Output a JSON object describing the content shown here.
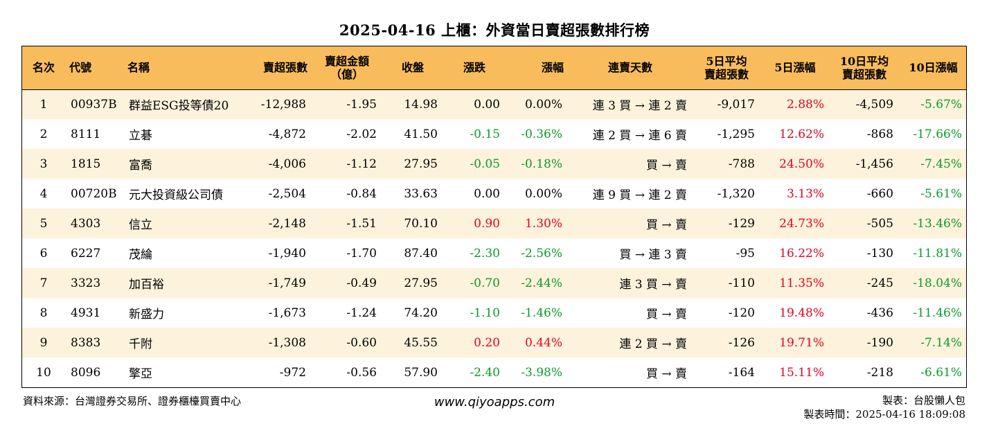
{
  "title": "2025-04-16 上櫃：外資當日賣超張數排行榜",
  "columns": [
    [
      "名次"
    ],
    [
      "代號"
    ],
    [
      "名稱"
    ],
    [
      "賣超張數"
    ],
    [
      "賣超金額",
      "（億）"
    ],
    [
      "收盤"
    ],
    [
      "漲跌"
    ],
    [
      "漲幅"
    ],
    [
      "連賣天數"
    ],
    [
      "5日平均",
      "賣超張數"
    ],
    [
      "5日漲幅"
    ],
    [
      "10日平均",
      "賣超張數"
    ],
    [
      "10日漲幅"
    ]
  ],
  "rows": [
    {
      "rank": "1",
      "code": "00937B",
      "name": "群益ESG投等債20",
      "sell": "-12,988",
      "amount": "-1.95",
      "close": "14.98",
      "change": "0.00",
      "pct": "0.00%",
      "dir": "flat",
      "streak": "連 3 買 → 連 2 賣",
      "avg5": "-9,017",
      "pct5": "2.88%",
      "pct5_dir": "up",
      "avg10": "-4,509",
      "pct10": "-5.67%",
      "pct10_dir": "down"
    },
    {
      "rank": "2",
      "code": "8111",
      "name": "立碁",
      "sell": "-4,872",
      "amount": "-2.02",
      "close": "41.50",
      "change": "-0.15",
      "pct": "-0.36%",
      "dir": "down",
      "streak": "連 2 買 → 連 6 賣",
      "avg5": "-1,295",
      "pct5": "12.62%",
      "pct5_dir": "up",
      "avg10": "-868",
      "pct10": "-17.66%",
      "pct10_dir": "down"
    },
    {
      "rank": "3",
      "code": "1815",
      "name": "富喬",
      "sell": "-4,006",
      "amount": "-1.12",
      "close": "27.95",
      "change": "-0.05",
      "pct": "-0.18%",
      "dir": "down",
      "streak": "買 → 賣",
      "avg5": "-788",
      "pct5": "24.50%",
      "pct5_dir": "up",
      "avg10": "-1,456",
      "pct10": "-7.45%",
      "pct10_dir": "down"
    },
    {
      "rank": "4",
      "code": "00720B",
      "name": "元大投資級公司債",
      "sell": "-2,504",
      "amount": "-0.84",
      "close": "33.63",
      "change": "0.00",
      "pct": "0.00%",
      "dir": "flat",
      "streak": "連 9 買 → 連 2 賣",
      "avg5": "-1,320",
      "pct5": "3.13%",
      "pct5_dir": "up",
      "avg10": "-660",
      "pct10": "-5.61%",
      "pct10_dir": "down"
    },
    {
      "rank": "5",
      "code": "4303",
      "name": "信立",
      "sell": "-2,148",
      "amount": "-1.51",
      "close": "70.10",
      "change": "0.90",
      "pct": "1.30%",
      "dir": "up",
      "streak": "買 → 賣",
      "avg5": "-129",
      "pct5": "24.73%",
      "pct5_dir": "up",
      "avg10": "-505",
      "pct10": "-13.46%",
      "pct10_dir": "down"
    },
    {
      "rank": "6",
      "code": "6227",
      "name": "茂綸",
      "sell": "-1,940",
      "amount": "-1.70",
      "close": "87.40",
      "change": "-2.30",
      "pct": "-2.56%",
      "dir": "down",
      "streak": "買 → 連 3 賣",
      "avg5": "-95",
      "pct5": "16.22%",
      "pct5_dir": "up",
      "avg10": "-130",
      "pct10": "-11.81%",
      "pct10_dir": "down"
    },
    {
      "rank": "7",
      "code": "3323",
      "name": "加百裕",
      "sell": "-1,749",
      "amount": "-0.49",
      "close": "27.95",
      "change": "-0.70",
      "pct": "-2.44%",
      "dir": "down",
      "streak": "連 3 買 → 賣",
      "avg5": "-110",
      "pct5": "11.35%",
      "pct5_dir": "up",
      "avg10": "-245",
      "pct10": "-18.04%",
      "pct10_dir": "down"
    },
    {
      "rank": "8",
      "code": "4931",
      "name": "新盛力",
      "sell": "-1,673",
      "amount": "-1.24",
      "close": "74.20",
      "change": "-1.10",
      "pct": "-1.46%",
      "dir": "down",
      "streak": "買 → 賣",
      "avg5": "-120",
      "pct5": "19.48%",
      "pct5_dir": "up",
      "avg10": "-436",
      "pct10": "-11.46%",
      "pct10_dir": "down"
    },
    {
      "rank": "9",
      "code": "8383",
      "name": "千附",
      "sell": "-1,308",
      "amount": "-0.60",
      "close": "45.55",
      "change": "0.20",
      "pct": "0.44%",
      "dir": "up",
      "streak": "連 2 買 → 賣",
      "avg5": "-126",
      "pct5": "19.71%",
      "pct5_dir": "up",
      "avg10": "-190",
      "pct10": "-7.14%",
      "pct10_dir": "down"
    },
    {
      "rank": "10",
      "code": "8096",
      "name": "擎亞",
      "sell": "-972",
      "amount": "-0.56",
      "close": "57.90",
      "change": "-2.40",
      "pct": "-3.98%",
      "dir": "down",
      "streak": "買 → 賣",
      "avg5": "-164",
      "pct5": "15.11%",
      "pct5_dir": "up",
      "avg10": "-218",
      "pct10": "-6.61%",
      "pct10_dir": "down"
    }
  ],
  "footer": {
    "source": "資料來源：台灣證券交易所、證券櫃檯買賣中心",
    "website": "www.qiyoapps.com",
    "maker": "製表：台股懶人包",
    "made_time": "製表時間：2025-04-16 18:09:08"
  },
  "colors": {
    "header_bg": "#f9bc5c",
    "odd_row_bg": "#fdf2db",
    "up": "#e5001f",
    "down": "#0a9a2a"
  }
}
